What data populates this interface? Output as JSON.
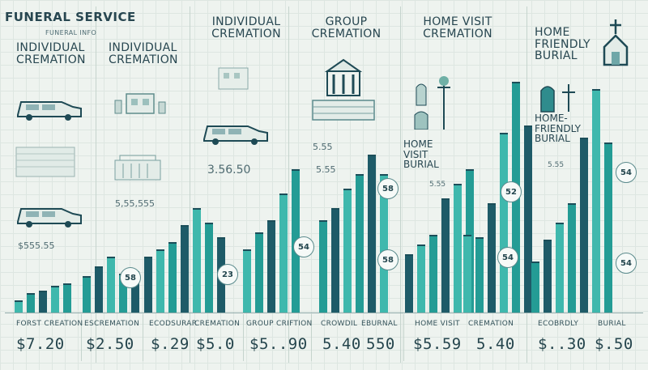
{
  "title": "Funeral Service",
  "subtitle": "Funeral info",
  "headers": [
    {
      "text": "Individual Cremation"
    },
    {
      "text": "Individual Cremation"
    },
    {
      "text": "Individual Cremation"
    },
    {
      "text": "Group Cremation"
    },
    {
      "text": "Home Visit Cremation"
    },
    {
      "text": "Home Friendly Burial"
    }
  ],
  "mid_labels": [
    {
      "text": "Home Visit Burial"
    },
    {
      "text": "Home-Friendly Burial"
    }
  ],
  "floating_values": [
    {
      "text": "$555.55"
    },
    {
      "text": "5,55,555"
    },
    {
      "text": "3.56.50"
    },
    {
      "text": "5.55"
    },
    {
      "text": "5.55"
    },
    {
      "text": "5.55"
    },
    {
      "text": "5.55"
    }
  ],
  "badges": [
    {
      "text": "58"
    },
    {
      "text": "23"
    },
    {
      "text": "54"
    },
    {
      "text": "58"
    },
    {
      "text": "58"
    },
    {
      "text": "52"
    },
    {
      "text": "54"
    },
    {
      "text": "54"
    },
    {
      "text": "54"
    }
  ],
  "footer_labels": [
    {
      "text": "Forst Creation"
    },
    {
      "text": "Escremation"
    },
    {
      "text": "Ecodsurar"
    },
    {
      "text": "Cremation"
    },
    {
      "text": "Group Criftion"
    },
    {
      "text": "Crowdil"
    },
    {
      "text": "Eburnal"
    },
    {
      "text": "Home Visit"
    },
    {
      "text": "Cremation"
    },
    {
      "text": "Ecobrdly"
    },
    {
      "text": "Burial"
    }
  ],
  "prices": [
    {
      "text": "$7.20"
    },
    {
      "text": "$2.50"
    },
    {
      "text": "$.29"
    },
    {
      "text": "$5.0"
    },
    {
      "text": "$5..90"
    },
    {
      "text": "5.40"
    },
    {
      "text": "550"
    },
    {
      "text": "$5.59"
    },
    {
      "text": "5.40"
    },
    {
      "text": "$..30"
    },
    {
      "text": "$.50"
    }
  ],
  "colors": {
    "teal_light": "#3fb8ad",
    "teal_mid": "#249c95",
    "teal_dark": "#1e5b68",
    "background": "#eef3ef"
  },
  "chart_data": {
    "type": "bar",
    "title": "Funeral Service",
    "xlabel": "",
    "ylabel": "",
    "ylim": [
      0,
      100
    ],
    "grid": true,
    "categories": [
      "Individual Cremation",
      "Individual Cremation",
      "Individual Cremation",
      "Group Cremation",
      "Home Visit Cremation",
      "Home Friendly Burial"
    ],
    "bars": [
      {
        "group": 0,
        "value": 5
      },
      {
        "group": 0,
        "value": 8
      },
      {
        "group": 0,
        "value": 9
      },
      {
        "group": 0,
        "value": 11
      },
      {
        "group": 0,
        "value": 12
      },
      {
        "group": 1,
        "value": 15
      },
      {
        "group": 1,
        "value": 19
      },
      {
        "group": 1,
        "value": 23
      },
      {
        "group": 1,
        "value": 16
      },
      {
        "group": 1,
        "value": 17
      },
      {
        "group": 2,
        "value": 23
      },
      {
        "group": 2,
        "value": 26
      },
      {
        "group": 2,
        "value": 29
      },
      {
        "group": 2,
        "value": 36
      },
      {
        "group": 2,
        "value": 43
      },
      {
        "group": 2,
        "value": 37
      },
      {
        "group": 2,
        "value": 31
      },
      {
        "group": 3,
        "value": 26
      },
      {
        "group": 3,
        "value": 33
      },
      {
        "group": 3,
        "value": 38
      },
      {
        "group": 3,
        "value": 49
      },
      {
        "group": 3,
        "value": 59
      },
      {
        "group": 4,
        "value": 38
      },
      {
        "group": 4,
        "value": 43
      },
      {
        "group": 4,
        "value": 51
      },
      {
        "group": 4,
        "value": 57
      },
      {
        "group": 4,
        "value": 65
      },
      {
        "group": 4,
        "value": 57
      },
      {
        "group": 5,
        "value": 24
      },
      {
        "group": 5,
        "value": 28
      },
      {
        "group": 5,
        "value": 32
      },
      {
        "group": 5,
        "value": 47
      },
      {
        "group": 5,
        "value": 53
      },
      {
        "group": 5,
        "value": 59
      },
      {
        "group": 6,
        "value": 32
      },
      {
        "group": 6,
        "value": 31
      },
      {
        "group": 6,
        "value": 45
      },
      {
        "group": 6,
        "value": 74
      },
      {
        "group": 6,
        "value": 95
      },
      {
        "group": 6,
        "value": 77
      },
      {
        "group": 7,
        "value": 21
      },
      {
        "group": 7,
        "value": 30
      },
      {
        "group": 7,
        "value": 37
      },
      {
        "group": 7,
        "value": 45
      },
      {
        "group": 7,
        "value": 72
      },
      {
        "group": 7,
        "value": 92
      },
      {
        "group": 7,
        "value": 70
      }
    ]
  }
}
